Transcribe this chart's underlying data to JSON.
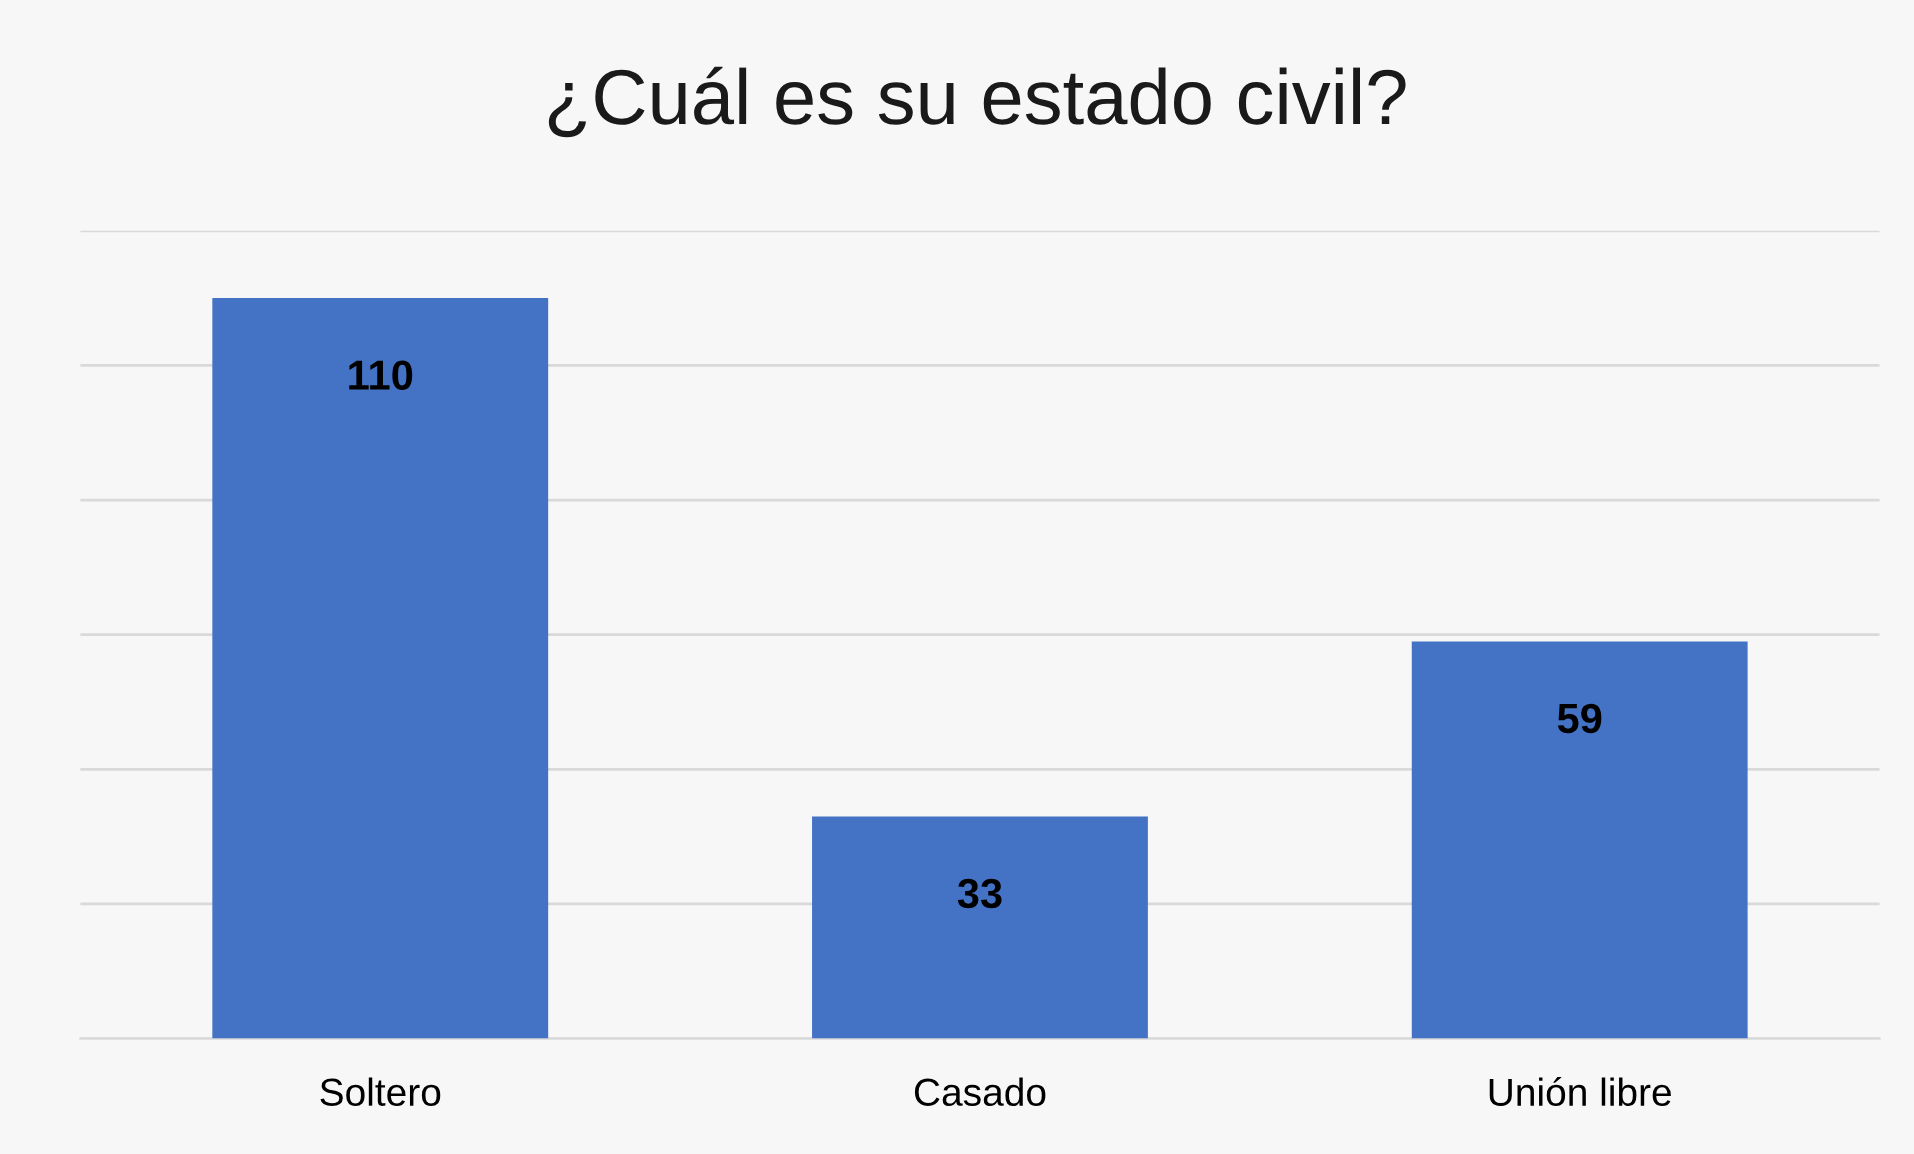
{
  "chart_data": {
    "type": "bar",
    "title": "¿Cuál es su estado civil?",
    "categories": [
      "Soltero",
      "Casado",
      "Unión libre"
    ],
    "values": [
      110,
      33,
      59
    ],
    "color": "#4472c4",
    "ylim": [
      0,
      120
    ],
    "yticks": [
      {
        "value": 0,
        "label": null
      },
      {
        "value": 20,
        "label": null
      },
      {
        "value": 40,
        "label": null
      },
      {
        "value": 60,
        "label": null
      },
      {
        "value": 80,
        "label": null
      },
      {
        "value": 100,
        "label": null
      },
      {
        "value": 120,
        "label": null
      }
    ],
    "tick_labels": "x",
    "grid": "y",
    "data_labels": true,
    "legend": false
  }
}
